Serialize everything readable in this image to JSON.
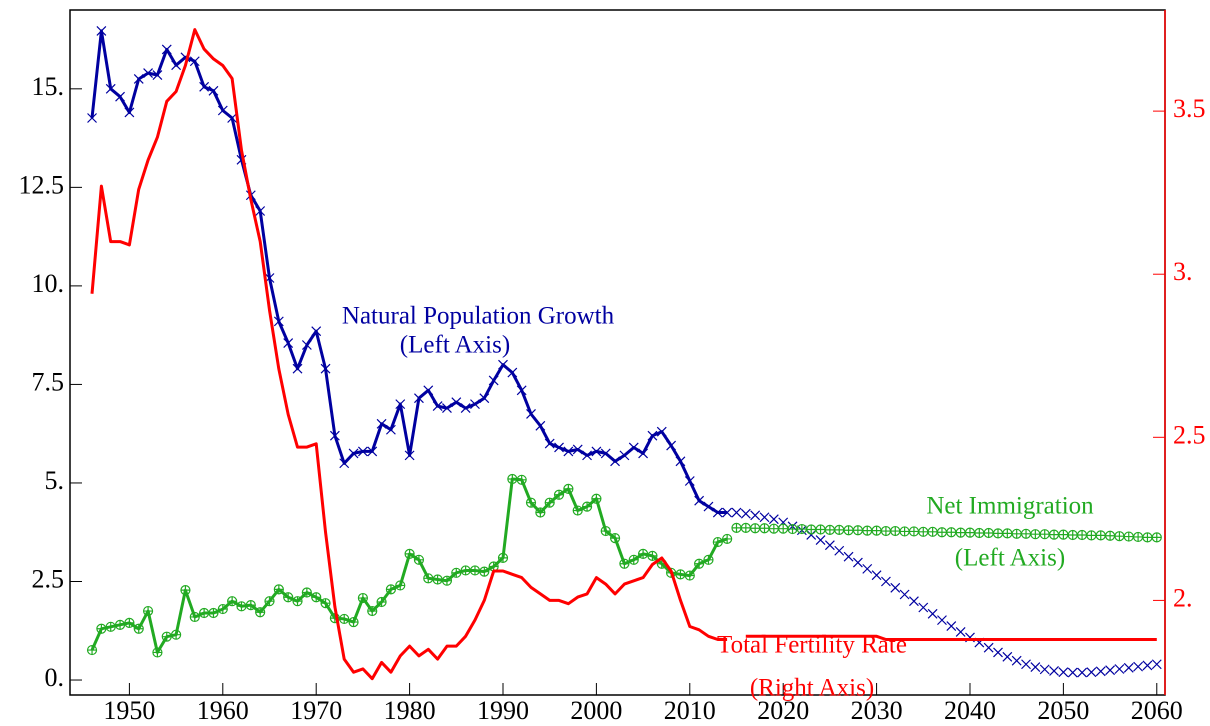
{
  "chart_data": {
    "type": "line",
    "x": [
      1946,
      1947,
      1948,
      1949,
      1950,
      1951,
      1952,
      1953,
      1954,
      1955,
      1956,
      1957,
      1958,
      1959,
      1960,
      1961,
      1962,
      1963,
      1964,
      1965,
      1966,
      1967,
      1968,
      1969,
      1970,
      1971,
      1972,
      1973,
      1974,
      1975,
      1976,
      1977,
      1978,
      1979,
      1980,
      1981,
      1982,
      1983,
      1984,
      1985,
      1986,
      1987,
      1988,
      1989,
      1990,
      1991,
      1992,
      1993,
      1994,
      1995,
      1996,
      1997,
      1998,
      1999,
      2000,
      2001,
      2002,
      2003,
      2004,
      2005,
      2006,
      2007,
      2008,
      2009,
      2010,
      2011,
      2012,
      2013,
      2014,
      2015,
      2016,
      2017,
      2018,
      2019,
      2020,
      2021,
      2022,
      2023,
      2024,
      2025,
      2026,
      2027,
      2028,
      2029,
      2030,
      2031,
      2032,
      2033,
      2034,
      2035,
      2036,
      2037,
      2038,
      2039,
      2040,
      2041,
      2042,
      2043,
      2044,
      2045,
      2046,
      2047,
      2048,
      2049,
      2050,
      2051,
      2052,
      2053,
      2054,
      2055,
      2056,
      2057,
      2058,
      2059,
      2060
    ],
    "xlim": [
      1943.64,
      2060.88
    ],
    "xticks": [
      1950,
      1960,
      1970,
      1980,
      1990,
      2000,
      2010,
      2020,
      2030,
      2040,
      2050,
      2060
    ],
    "ylim": [
      -0.38,
      17
    ],
    "yticks": [
      {
        "value": 0,
        "label": "0."
      },
      2.5,
      {
        "value": 5,
        "label": "5."
      },
      7.5,
      {
        "value": 10,
        "label": "10."
      },
      12.5,
      {
        "value": 15,
        "label": "15."
      }
    ],
    "y2lim": [
      1.71,
      3.81
    ],
    "y2ticks": [
      {
        "value": 2,
        "label": "2."
      },
      2.5,
      {
        "value": 3,
        "label": "3."
      },
      3.5
    ],
    "y2color": "#ff0000",
    "series": [
      {
        "name": "Natural Population Growth",
        "axis_note": "(Left Axis)",
        "color": "#0000a0",
        "marker": "x",
        "markers_only_from": 2015,
        "values": [
          14.26,
          16.47,
          15.0,
          14.8,
          14.4,
          15.25,
          15.4,
          15.35,
          16.0,
          15.6,
          15.8,
          15.7,
          15.05,
          14.95,
          14.45,
          14.26,
          13.2,
          12.3,
          11.9,
          10.2,
          9.1,
          8.55,
          7.9,
          8.5,
          8.85,
          7.9,
          6.2,
          5.5,
          5.75,
          5.8,
          5.8,
          6.5,
          6.35,
          7.0,
          5.7,
          7.15,
          7.35,
          6.95,
          6.9,
          7.05,
          6.9,
          7.0,
          7.15,
          7.6,
          8.0,
          7.8,
          7.35,
          6.75,
          6.45,
          6.0,
          5.9,
          5.8,
          5.85,
          5.7,
          5.8,
          5.75,
          5.55,
          5.7,
          5.9,
          5.75,
          6.2,
          6.3,
          5.95,
          5.55,
          5.05,
          4.55,
          4.4,
          4.25,
          4.25,
          4.25,
          4.22,
          4.18,
          4.13,
          4.08,
          4.0,
          3.9,
          3.8,
          3.68,
          3.55,
          3.42,
          3.28,
          3.13,
          2.98,
          2.82,
          2.66,
          2.5,
          2.34,
          2.17,
          2.0,
          1.84,
          1.68,
          1.52,
          1.37,
          1.22,
          1.08,
          0.95,
          0.82,
          0.7,
          0.59,
          0.49,
          0.4,
          0.33,
          0.27,
          0.23,
          0.2,
          0.19,
          0.19,
          0.2,
          0.22,
          0.25,
          0.28,
          0.31,
          0.34,
          0.37,
          0.4
        ]
      },
      {
        "name": "Net Immigration",
        "axis_note": "(Left Axis)",
        "color": "#22aa22",
        "marker": "circle",
        "markers_only_from": 2015,
        "values": [
          0.76,
          1.3,
          1.35,
          1.4,
          1.45,
          1.3,
          1.75,
          0.7,
          1.1,
          1.15,
          2.28,
          1.6,
          1.7,
          1.7,
          1.8,
          2.0,
          1.87,
          1.9,
          1.72,
          2.0,
          2.3,
          2.1,
          2.0,
          2.22,
          2.1,
          1.95,
          1.57,
          1.55,
          1.47,
          2.08,
          1.75,
          1.98,
          2.3,
          2.4,
          3.2,
          3.05,
          2.58,
          2.55,
          2.52,
          2.72,
          2.78,
          2.78,
          2.75,
          2.88,
          3.1,
          5.1,
          5.08,
          4.5,
          4.25,
          4.5,
          4.7,
          4.85,
          4.3,
          4.4,
          4.6,
          3.78,
          3.6,
          2.95,
          3.05,
          3.2,
          3.15,
          2.95,
          2.72,
          2.68,
          2.65,
          2.95,
          3.05,
          3.5,
          3.58,
          3.86,
          3.86,
          3.85,
          3.85,
          3.84,
          3.84,
          3.83,
          3.83,
          3.82,
          3.82,
          3.81,
          3.81,
          3.8,
          3.8,
          3.79,
          3.79,
          3.78,
          3.78,
          3.77,
          3.77,
          3.76,
          3.76,
          3.75,
          3.75,
          3.74,
          3.74,
          3.73,
          3.73,
          3.72,
          3.72,
          3.71,
          3.71,
          3.7,
          3.7,
          3.69,
          3.69,
          3.68,
          3.68,
          3.67,
          3.67,
          3.66,
          3.65,
          3.64,
          3.63,
          3.62,
          3.62
        ]
      },
      {
        "name": "Total Fertility Rate",
        "axis_note": "(Right Axis)",
        "color": "#ff0000",
        "axis": "y2",
        "values": [
          2.94,
          3.27,
          3.1,
          3.1,
          3.09,
          3.26,
          3.35,
          3.42,
          3.53,
          3.56,
          3.64,
          3.75,
          3.69,
          3.66,
          3.64,
          3.6,
          3.38,
          3.23,
          3.1,
          2.89,
          2.71,
          2.57,
          2.47,
          2.47,
          2.48,
          2.21,
          1.98,
          1.82,
          1.78,
          1.79,
          1.76,
          1.81,
          1.78,
          1.83,
          1.86,
          1.83,
          1.85,
          1.82,
          1.86,
          1.86,
          1.89,
          1.94,
          2.0,
          2.09,
          2.09,
          2.08,
          2.07,
          2.04,
          2.02,
          2.0,
          2.0,
          1.99,
          2.01,
          2.02,
          2.07,
          2.05,
          2.02,
          2.05,
          2.06,
          2.07,
          2.11,
          2.13,
          2.09,
          2.0,
          1.92,
          1.91,
          1.89,
          1.88,
          1.88,
          null,
          1.89,
          1.89,
          1.89,
          1.89,
          1.89,
          1.89,
          1.89,
          1.89,
          1.89,
          1.89,
          1.89,
          1.89,
          1.89,
          1.89,
          1.89,
          1.88,
          1.88,
          1.88,
          1.88,
          1.88,
          1.88,
          1.88,
          1.88,
          1.88,
          1.88,
          1.88,
          1.88,
          1.88,
          1.88,
          1.88,
          1.88,
          1.88,
          1.88,
          1.88,
          1.88,
          1.88,
          1.88,
          1.88,
          1.88,
          1.88,
          1.88,
          1.88,
          1.88,
          1.88,
          1.88
        ]
      }
    ]
  }
}
